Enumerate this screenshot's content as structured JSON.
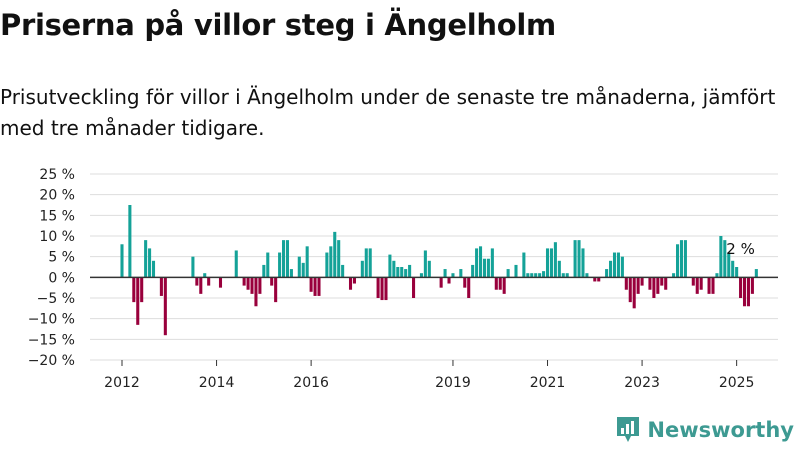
{
  "title": "Priserna på villor steg i Ängelholm",
  "subtitle": "Prisutveckling för villor i Ängelholm under de senaste tre månaderna, jämfört med tre månader tidigare.",
  "brand": {
    "name": "Newsworthy",
    "logo_icon": "bar-chart-pin-icon",
    "color": "#3d9a92"
  },
  "colors": {
    "positive": "#14a298",
    "negative": "#99003c",
    "grid": "#dddddd",
    "axis": "#333333"
  },
  "chart_data": {
    "type": "bar",
    "title": "Priserna på villor steg i Ängelholm",
    "xlabel": "",
    "ylabel": "",
    "ylim": [
      -20,
      25
    ],
    "yticks": [
      {
        "value": 25,
        "label": "25 %"
      },
      {
        "value": 20,
        "label": "20 %"
      },
      {
        "value": 15,
        "label": "15 %"
      },
      {
        "value": 10,
        "label": "10 %"
      },
      {
        "value": 5,
        "label": "5 %"
      },
      {
        "value": 0,
        "label": "0 %"
      },
      {
        "value": -5,
        "label": "−5 %"
      },
      {
        "value": -10,
        "label": "−10 %"
      },
      {
        "value": -15,
        "label": "−15 %"
      },
      {
        "value": -20,
        "label": "−20 %"
      }
    ],
    "xticks": [
      {
        "date": "2012-01",
        "label": "2012"
      },
      {
        "date": "2014-01",
        "label": "2014"
      },
      {
        "date": "2016-01",
        "label": "2016"
      },
      {
        "date": "2019-01",
        "label": "2019"
      },
      {
        "date": "2021-01",
        "label": "2021"
      },
      {
        "date": "2023-01",
        "label": "2023"
      },
      {
        "date": "2025-01",
        "label": "2025"
      }
    ],
    "start_month": "2012-01",
    "grid": true,
    "annotation": {
      "text": "2 %",
      "date": "2025-02"
    },
    "values": [
      8,
      0,
      17.5,
      -6,
      -11.5,
      -6,
      9,
      7,
      4,
      0,
      -4.5,
      -14,
      0,
      0,
      0,
      0,
      0,
      0,
      5,
      -2,
      -4,
      1,
      -2,
      0,
      0,
      -2.5,
      0,
      0,
      0,
      6.5,
      0,
      -2,
      -3,
      -4,
      -7,
      -4,
      3,
      6,
      -2,
      -6,
      6,
      9,
      9,
      2,
      0,
      5,
      3.5,
      7.5,
      -3.5,
      -4.5,
      -4.5,
      0,
      6,
      7.5,
      11,
      9,
      3,
      0,
      -3,
      -1.5,
      0,
      4,
      7,
      7,
      0,
      -5,
      -5.5,
      -5.5,
      5.5,
      4,
      2.5,
      2.5,
      2,
      3,
      -5,
      0,
      1,
      6.5,
      4,
      0,
      0,
      -2.5,
      2,
      -1.5,
      1,
      0,
      2,
      -2.5,
      -5,
      3,
      7,
      7.5,
      4.5,
      4.5,
      7,
      -3,
      -3,
      -4,
      2,
      0,
      3,
      0,
      6,
      1,
      1,
      1,
      1,
      1.5,
      7,
      7,
      8.5,
      4,
      1,
      1,
      0,
      9,
      9,
      7,
      1,
      0,
      -1,
      -1,
      0,
      2,
      4,
      6,
      6,
      5,
      -3,
      -6,
      -7.5,
      -4,
      -2,
      0,
      -3,
      -5,
      -4,
      -2,
      -3,
      0,
      1,
      8,
      9,
      9,
      0,
      -2,
      -4,
      -3,
      0,
      -4,
      -4,
      1,
      10,
      9,
      6,
      4,
      2.5,
      -5,
      -7,
      -7,
      -4,
      2
    ]
  }
}
